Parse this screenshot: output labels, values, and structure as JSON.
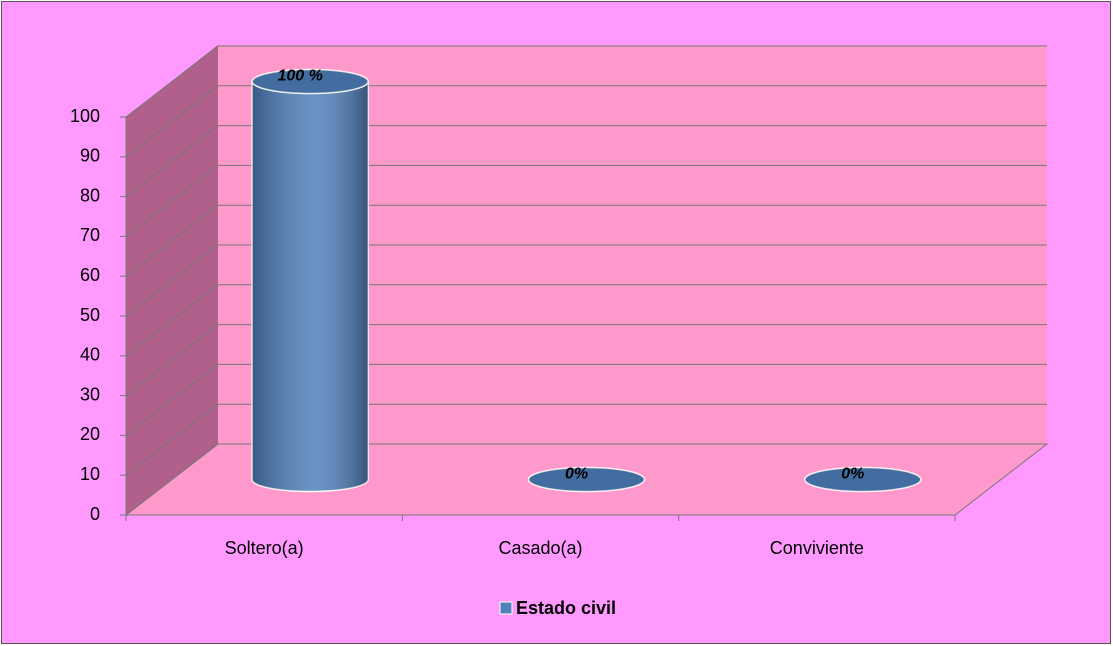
{
  "chart_data": {
    "type": "bar",
    "categories": [
      "Soltero(a)",
      "Casado(a)",
      "Conviviente"
    ],
    "series": [
      {
        "name": "Estado civil",
        "color": "#4f81bd",
        "values": [
          100,
          0,
          0
        ],
        "value_labels": [
          "100 %",
          "0%",
          "0%"
        ]
      }
    ],
    "ylim": [
      0,
      100
    ],
    "yticks": [
      0,
      10,
      20,
      30,
      40,
      50,
      60,
      70,
      80,
      90,
      100
    ],
    "grid": true,
    "legend": "bottom"
  }
}
